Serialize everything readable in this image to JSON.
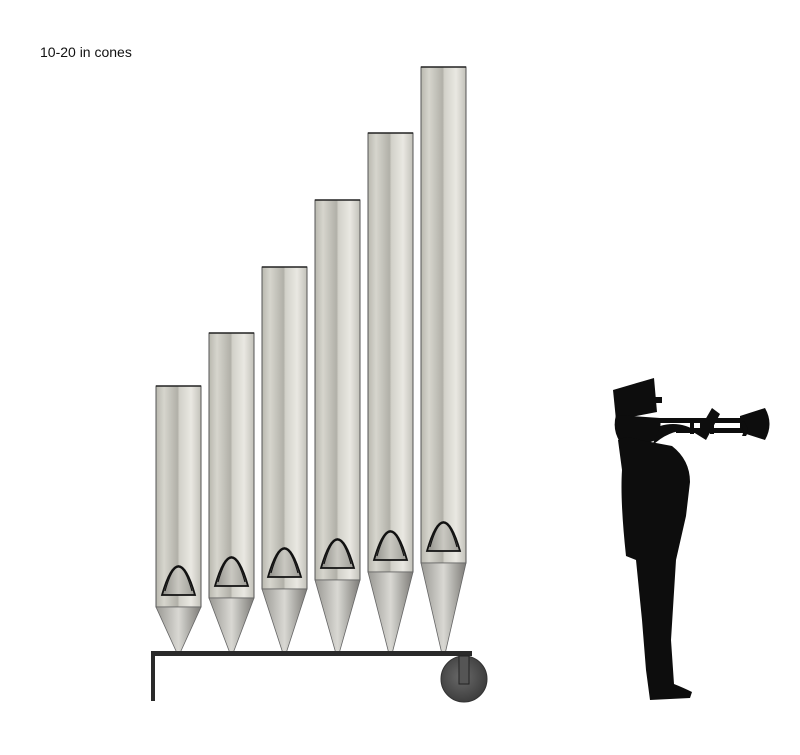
{
  "caption": "10-20 in cones",
  "colors": {
    "pipe_light": "#e4e3dc",
    "pipe_mid": "#c4c3ba",
    "pipe_dark": "#a4a39b",
    "cone_light": "#d8d7d2",
    "cone_dark": "#8e8d89",
    "cart": "#2a2a2a",
    "wheel": "#4a4a4a",
    "silhouette": "#0d0d0d"
  },
  "pipes": [
    {
      "name": "pipe-1"
    },
    {
      "name": "pipe-2"
    },
    {
      "name": "pipe-3"
    },
    {
      "name": "pipe-4"
    },
    {
      "name": "pipe-5"
    },
    {
      "name": "pipe-6"
    }
  ],
  "figure": {
    "name": "trumpet-player-silhouette"
  }
}
